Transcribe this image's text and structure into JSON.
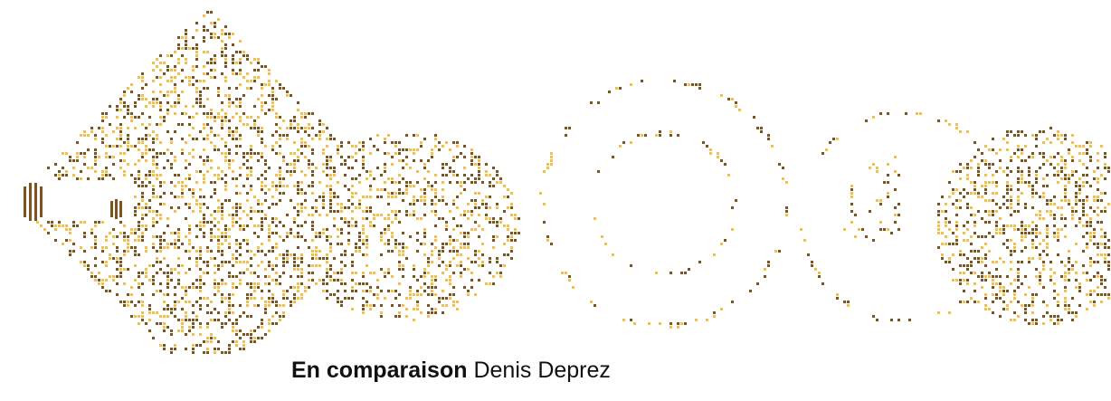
{
  "caption": {
    "title": "En comparaison",
    "author": "Denis Deprez"
  }
}
